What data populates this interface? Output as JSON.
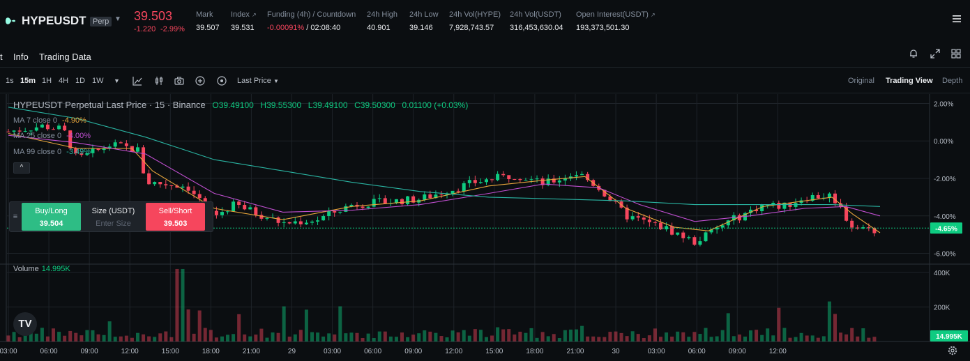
{
  "header": {
    "symbol": "HYPEUSDT",
    "badge": "Perp",
    "last_price": "39.503",
    "change_abs": "-1.220",
    "change_pct": "-2.99%",
    "stats": [
      {
        "label": "Mark",
        "value": "39.507"
      },
      {
        "label": "Index",
        "value": "39.531"
      },
      {
        "label": "Funding (4h) / Countdown",
        "value_a": "-0.00091%",
        "value_b": "/ 02:08:40"
      },
      {
        "label": "24h High",
        "value": "40.901"
      },
      {
        "label": "24h Low",
        "value": "39.146"
      },
      {
        "label": "24h Vol(HYPE)",
        "value": "7,928,743.57"
      },
      {
        "label": "24h Vol(USDT)",
        "value": "316,453,630.04"
      },
      {
        "label": "Open Interest(USDT)",
        "value": "193,373,501.30"
      }
    ]
  },
  "subnav": {
    "tabs": [
      "t",
      "Info",
      "Trading Data"
    ]
  },
  "toolbar": {
    "intervals": [
      "1s",
      "15m",
      "1H",
      "4H",
      "1D",
      "1W"
    ],
    "active_interval": "15m",
    "price_type": "Last Price",
    "views": [
      "Original",
      "Trading View",
      "Depth"
    ],
    "active_view": "Trading View"
  },
  "legend": {
    "title": "HYPEUSDT Perpetual Last Price · 15 · Binance",
    "o": "O39.49100",
    "h": "H39.55300",
    "l": "L39.49100",
    "c": "C39.50300",
    "chg": "0.01100 (+0.03%)"
  },
  "ma": [
    {
      "label": "MA 7 close 0",
      "value": "-4.90%",
      "color": "#e8a63c"
    },
    {
      "label": "MA 25 close 0",
      "value": "-4.00%",
      "color": "#c04fd0"
    },
    {
      "label": "MA 99 close 0",
      "value": "-3.49%",
      "color": "#2ab5a3"
    }
  ],
  "trade_panel": {
    "buy_label": "Buy/Long",
    "buy_price": "39.504",
    "size_label": "Size (USDT)",
    "size_placeholder": "Enter Size",
    "sell_label": "Sell/Short",
    "sell_price": "39.503"
  },
  "volume": {
    "label": "Volume",
    "value": "14.995K",
    "current_tag": "14.995K"
  },
  "chart_data": {
    "type": "candlestick",
    "title": "HYPEUSDT Perpetual Last Price · 15 · Binance",
    "y_unit": "% change",
    "y_ticks": [
      "2.00%",
      "0.00%",
      "-2.00%",
      "-4.00%",
      "-6.00%"
    ],
    "y_tick_values": [
      2,
      0,
      -2,
      -4,
      -6
    ],
    "ylim": [
      -6.5,
      2.5
    ],
    "current_label": "-4.65%",
    "current_value": -4.65,
    "vol_ticks": [
      "400K",
      "200K"
    ],
    "vol_tick_values": [
      400,
      200
    ],
    "vol_max_k": 440,
    "x_ticks": [
      "03:00",
      "06:00",
      "09:00",
      "12:00",
      "15:00",
      "18:00",
      "21:00",
      "29",
      "03:00",
      "06:00",
      "09:00",
      "12:00",
      "15:00",
      "18:00",
      "21:00",
      "30",
      "03:00",
      "06:00",
      "09:00",
      "12:00"
    ],
    "x_tick_fracs": [
      0.0,
      0.059,
      0.118,
      0.177,
      0.236,
      0.295,
      0.354,
      0.413,
      0.472,
      0.531,
      0.59,
      0.649,
      0.708,
      0.767,
      0.826,
      0.885,
      0.944,
      1.003,
      1.062,
      1.121
    ],
    "trend_anchors": [
      [
        0,
        0.5
      ],
      [
        0.05,
        0.8
      ],
      [
        0.08,
        0.6
      ],
      [
        0.1,
        -1.0
      ],
      [
        0.15,
        -0.2
      ],
      [
        0.19,
        -0.5
      ],
      [
        0.2,
        -2.2
      ],
      [
        0.26,
        -2.4
      ],
      [
        0.3,
        -4.0
      ],
      [
        0.33,
        -3.4
      ],
      [
        0.4,
        -4.4
      ],
      [
        0.45,
        -4.2
      ],
      [
        0.5,
        -3.4
      ],
      [
        0.6,
        -3.1
      ],
      [
        0.68,
        -2.2
      ],
      [
        0.74,
        -1.8
      ],
      [
        0.78,
        -2.3
      ],
      [
        0.83,
        -1.7
      ],
      [
        0.86,
        -2.5
      ],
      [
        0.9,
        -4.0
      ],
      [
        0.96,
        -4.7
      ],
      [
        1.0,
        -5.4
      ],
      [
        1.05,
        -4.3
      ],
      [
        1.1,
        -3.4
      ],
      [
        1.13,
        -3.5
      ],
      [
        1.16,
        -3.0
      ],
      [
        1.2,
        -2.9
      ],
      [
        1.23,
        -4.6
      ],
      [
        1.27,
        -4.8
      ]
    ],
    "ma7": [
      [
        0,
        0.4
      ],
      [
        0.1,
        -0.4
      ],
      [
        0.18,
        -0.4
      ],
      [
        0.21,
        -1.6
      ],
      [
        0.3,
        -3.6
      ],
      [
        0.4,
        -4.2
      ],
      [
        0.5,
        -3.5
      ],
      [
        0.6,
        -3.2
      ],
      [
        0.7,
        -2.4
      ],
      [
        0.78,
        -2.1
      ],
      [
        0.84,
        -1.9
      ],
      [
        0.9,
        -3.6
      ],
      [
        0.97,
        -4.6
      ],
      [
        1.02,
        -4.8
      ],
      [
        1.1,
        -3.5
      ],
      [
        1.2,
        -3.0
      ],
      [
        1.23,
        -3.9
      ],
      [
        1.27,
        -4.9
      ]
    ],
    "ma25": [
      [
        0,
        0.3
      ],
      [
        0.1,
        -0.1
      ],
      [
        0.2,
        -0.7
      ],
      [
        0.3,
        -2.8
      ],
      [
        0.4,
        -3.8
      ],
      [
        0.5,
        -3.7
      ],
      [
        0.6,
        -3.4
      ],
      [
        0.7,
        -2.8
      ],
      [
        0.78,
        -2.3
      ],
      [
        0.86,
        -2.5
      ],
      [
        0.92,
        -3.4
      ],
      [
        1.0,
        -4.3
      ],
      [
        1.08,
        -4.0
      ],
      [
        1.16,
        -3.6
      ],
      [
        1.22,
        -3.5
      ],
      [
        1.27,
        -4.0
      ]
    ],
    "ma99": [
      [
        0,
        1.8
      ],
      [
        0.1,
        1.2
      ],
      [
        0.2,
        0.2
      ],
      [
        0.3,
        -1.0
      ],
      [
        0.4,
        -1.6
      ],
      [
        0.5,
        -2.2
      ],
      [
        0.6,
        -2.7
      ],
      [
        0.7,
        -3.0
      ],
      [
        0.8,
        -3.1
      ],
      [
        0.9,
        -3.2
      ],
      [
        1.0,
        -3.4
      ],
      [
        1.1,
        -3.4
      ],
      [
        1.2,
        -3.4
      ],
      [
        1.27,
        -3.5
      ]
    ]
  }
}
